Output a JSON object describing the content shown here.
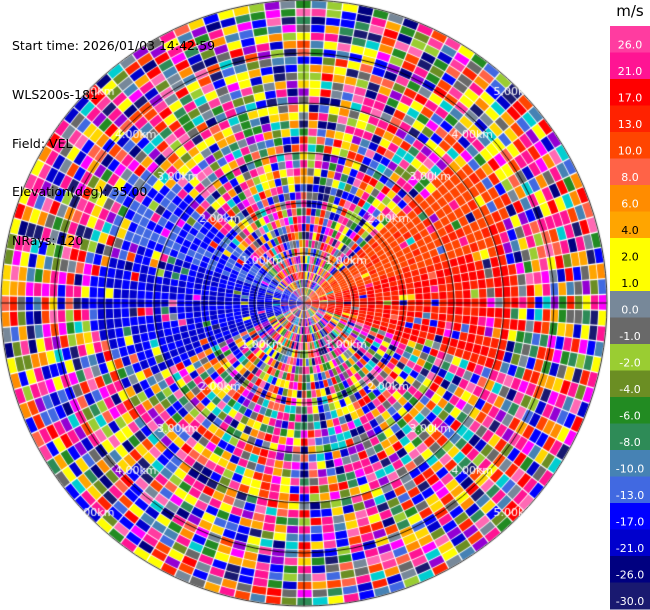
{
  "info": {
    "start_time": "Start time: 2026/01/03 14:42:59",
    "site": "WLS200s-181",
    "field": "Field: VEL",
    "elevation": "Elevation(deg): 35.00",
    "nrays": "NRays: 120"
  },
  "chart_data": {
    "type": "heatmap",
    "subtype": "polar PPI scan",
    "field": "VEL",
    "units": "m/s",
    "elevation_deg": 35.0,
    "n_rays": 120,
    "range_rings_km": [
      1.0,
      2.0,
      3.0,
      4.0,
      5.0
    ],
    "ring_labels": [
      "1.00km",
      "2.00km",
      "3.00km",
      "4.00km",
      "5.00km"
    ],
    "colorbar": {
      "title": "m/s",
      "ticks": [
        "26.0",
        "21.0",
        "17.0",
        "13.0",
        "10.0",
        "8.0",
        "6.0",
        "4.0",
        "2.0",
        "1.0",
        "0.0",
        "-1.0",
        "-2.0",
        "-4.0",
        "-6.0",
        "-8.0",
        "-10.0",
        "-13.0",
        "-17.0",
        "-21.0",
        "-26.0",
        "-30.0"
      ],
      "colors": [
        "#ff3ca0",
        "#ff1493",
        "#ff0000",
        "#ff2200",
        "#ff4500",
        "#ff6347",
        "#ff8c00",
        "#ffa500",
        "#ffff00",
        "#ffff00",
        "#778899",
        "#696969",
        "#9acd32",
        "#6b8e23",
        "#228b22",
        "#2e8b57",
        "#4682b4",
        "#4169e1",
        "#0000ff",
        "#0000cd",
        "#000080",
        "#191970"
      ],
      "range": [
        -30,
        30
      ]
    },
    "velocity_regions": [
      {
        "azimuth_center_deg": 90,
        "azimuth_width_deg": 40,
        "value": 17.0,
        "color_note": "red, receding"
      },
      {
        "azimuth_center_deg": 60,
        "azimuth_width_deg": 25,
        "value": 12.0,
        "color_note": "orange-red"
      },
      {
        "azimuth_center_deg": 270,
        "azimuth_width_deg": 50,
        "value": -17.0,
        "color_note": "blue, approaching"
      },
      {
        "azimuth_center_deg": 300,
        "azimuth_width_deg": 20,
        "value": -13.0,
        "color_note": "royal blue"
      }
    ]
  }
}
